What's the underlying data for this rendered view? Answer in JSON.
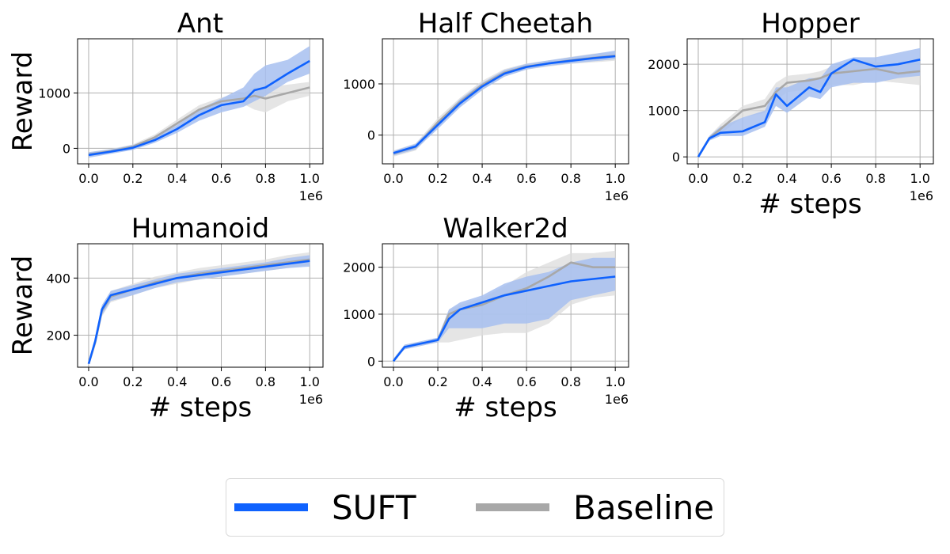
{
  "colors": {
    "suft": "#0f62fe",
    "suft_band": "#a7c0f0",
    "baseline": "#a8a8a8",
    "baseline_band": "#dcdcdc",
    "grid": "#b0b0b0"
  },
  "legend": {
    "items": [
      {
        "label": "SUFT",
        "color": "#0f62fe"
      },
      {
        "label": "Baseline",
        "color": "#a8a8a8"
      }
    ]
  },
  "chart_data": [
    {
      "type": "line",
      "title": "Ant",
      "ylabel": "Reward",
      "xlabel": "",
      "xlim": [
        -0.05,
        1.06
      ],
      "ylim": [
        -280,
        1980
      ],
      "yticks": [
        0,
        1000
      ],
      "xticks": [
        0.0,
        0.2,
        0.4,
        0.6,
        0.8,
        1.0
      ],
      "x_offset_label": "1e6",
      "grid": true,
      "x": [
        0.0,
        0.1,
        0.2,
        0.3,
        0.4,
        0.5,
        0.6,
        0.7,
        0.75,
        0.8,
        0.9,
        1.0
      ],
      "series": [
        {
          "name": "SUFT",
          "values": [
            -120,
            -60,
            10,
            150,
            350,
            600,
            780,
            850,
            1050,
            1100,
            1350,
            1580
          ],
          "band_low": [
            -170,
            -100,
            -30,
            100,
            280,
            500,
            650,
            750,
            850,
            950,
            1200,
            1350
          ],
          "band_high": [
            -70,
            -20,
            60,
            200,
            420,
            700,
            900,
            1100,
            1350,
            1500,
            1600,
            1850
          ]
        },
        {
          "name": "Baseline",
          "values": [
            -110,
            -50,
            30,
            200,
            450,
            700,
            850,
            900,
            950,
            900,
            1000,
            1100
          ],
          "band_low": [
            -150,
            -90,
            -10,
            150,
            380,
            620,
            780,
            800,
            700,
            650,
            850,
            950
          ],
          "band_high": [
            -70,
            -10,
            70,
            250,
            520,
            780,
            920,
            1000,
            1100,
            1100,
            1150,
            1200
          ]
        }
      ]
    },
    {
      "type": "line",
      "title": "Half Cheetah",
      "ylabel": "",
      "xlabel": "",
      "xlim": [
        -0.05,
        1.06
      ],
      "ylim": [
        -560,
        1880
      ],
      "yticks": [
        0,
        1000
      ],
      "xticks": [
        0.0,
        0.2,
        0.4,
        0.6,
        0.8,
        1.0
      ],
      "x_offset_label": "1e6",
      "grid": true,
      "x": [
        0.0,
        0.1,
        0.2,
        0.3,
        0.4,
        0.5,
        0.6,
        0.7,
        0.8,
        0.9,
        1.0
      ],
      "series": [
        {
          "name": "SUFT",
          "values": [
            -350,
            -220,
            200,
            620,
            950,
            1200,
            1330,
            1400,
            1450,
            1500,
            1540
          ],
          "band_low": [
            -400,
            -280,
            120,
            540,
            880,
            1140,
            1280,
            1350,
            1400,
            1440,
            1480
          ],
          "band_high": [
            -310,
            -170,
            270,
            700,
            1020,
            1270,
            1390,
            1460,
            1520,
            1580,
            1650
          ]
        },
        {
          "name": "Baseline",
          "values": [
            -360,
            -230,
            250,
            650,
            980,
            1220,
            1340,
            1400,
            1460,
            1510,
            1550
          ],
          "band_low": [
            -420,
            -300,
            150,
            560,
            880,
            1140,
            1280,
            1340,
            1390,
            1420,
            1450
          ],
          "band_high": [
            -300,
            -160,
            330,
            730,
            1060,
            1290,
            1400,
            1460,
            1530,
            1590,
            1620
          ]
        }
      ]
    },
    {
      "type": "line",
      "title": "Hopper",
      "ylabel": "",
      "xlabel": "# steps",
      "xlim": [
        -0.05,
        1.06
      ],
      "ylim": [
        -150,
        2550
      ],
      "yticks": [
        0,
        1000,
        2000
      ],
      "xticks": [
        0.0,
        0.2,
        0.4,
        0.6,
        0.8,
        1.0
      ],
      "x_offset_label": "1e6",
      "grid": true,
      "x": [
        0.0,
        0.05,
        0.1,
        0.2,
        0.3,
        0.35,
        0.4,
        0.5,
        0.55,
        0.6,
        0.7,
        0.8,
        0.9,
        1.0
      ],
      "series": [
        {
          "name": "SUFT",
          "values": [
            0,
            400,
            520,
            550,
            750,
            1350,
            1100,
            1500,
            1400,
            1800,
            2100,
            1950,
            2000,
            2100
          ],
          "band_low": [
            0,
            350,
            450,
            450,
            650,
            1100,
            950,
            1300,
            1250,
            1500,
            1600,
            1600,
            1700,
            1750
          ],
          "band_high": [
            50,
            450,
            650,
            850,
            1000,
            1500,
            1500,
            1700,
            1700,
            2000,
            2150,
            2150,
            2250,
            2350
          ]
        },
        {
          "name": "Baseline",
          "values": [
            0,
            400,
            600,
            1000,
            1100,
            1400,
            1600,
            1650,
            1700,
            1800,
            1850,
            1900,
            1800,
            1850
          ],
          "band_low": [
            0,
            350,
            500,
            850,
            950,
            1200,
            1400,
            1450,
            1500,
            1550,
            1550,
            1650,
            1600,
            1550
          ],
          "band_high": [
            50,
            450,
            700,
            1100,
            1250,
            1600,
            1750,
            1800,
            1850,
            1950,
            2050,
            2050,
            2000,
            2050
          ]
        }
      ]
    },
    {
      "type": "line",
      "title": "Humanoid",
      "ylabel": "Reward",
      "xlabel": "# steps",
      "xlim": [
        -0.05,
        1.06
      ],
      "ylim": [
        88,
        520
      ],
      "yticks": [
        200,
        400
      ],
      "xticks": [
        0.0,
        0.2,
        0.4,
        0.6,
        0.8,
        1.0
      ],
      "x_offset_label": "1e6",
      "grid": true,
      "x": [
        0.0,
        0.03,
        0.06,
        0.1,
        0.2,
        0.3,
        0.4,
        0.5,
        0.6,
        0.7,
        0.8,
        0.9,
        1.0
      ],
      "series": [
        {
          "name": "SUFT",
          "values": [
            100,
            180,
            290,
            340,
            360,
            380,
            400,
            410,
            420,
            430,
            440,
            450,
            460
          ],
          "band_low": [
            95,
            170,
            270,
            320,
            340,
            365,
            385,
            395,
            405,
            415,
            425,
            435,
            440
          ],
          "band_high": [
            105,
            190,
            305,
            355,
            375,
            395,
            415,
            425,
            435,
            445,
            455,
            470,
            480
          ]
        },
        {
          "name": "Baseline",
          "values": [
            100,
            175,
            285,
            335,
            360,
            385,
            400,
            415,
            425,
            435,
            445,
            455,
            465
          ],
          "band_low": [
            95,
            165,
            265,
            315,
            340,
            365,
            380,
            395,
            405,
            415,
            425,
            435,
            445
          ],
          "band_high": [
            105,
            185,
            305,
            355,
            380,
            405,
            420,
            435,
            445,
            455,
            465,
            480,
            490
          ]
        }
      ]
    },
    {
      "type": "line",
      "title": "Walker2d",
      "ylabel": "",
      "xlabel": "# steps",
      "xlim": [
        -0.05,
        1.06
      ],
      "ylim": [
        -130,
        2500
      ],
      "yticks": [
        0,
        1000,
        2000
      ],
      "xticks": [
        0.0,
        0.2,
        0.4,
        0.6,
        0.8,
        1.0
      ],
      "x_offset_label": "1e6",
      "grid": true,
      "x": [
        0.0,
        0.05,
        0.1,
        0.2,
        0.25,
        0.3,
        0.4,
        0.5,
        0.6,
        0.7,
        0.8,
        0.9,
        1.0
      ],
      "series": [
        {
          "name": "SUFT",
          "values": [
            0,
            300,
            350,
            450,
            900,
            1100,
            1250,
            1400,
            1500,
            1600,
            1700,
            1750,
            1800
          ],
          "band_low": [
            0,
            250,
            300,
            400,
            700,
            700,
            700,
            800,
            800,
            900,
            1300,
            1400,
            1500
          ],
          "band_high": [
            50,
            350,
            400,
            500,
            1100,
            1250,
            1400,
            1650,
            1800,
            1900,
            2100,
            2200,
            2200
          ]
        },
        {
          "name": "Baseline",
          "values": [
            0,
            300,
            350,
            450,
            1000,
            1100,
            1200,
            1400,
            1550,
            1800,
            2100,
            2000,
            2000
          ],
          "band_low": [
            0,
            250,
            300,
            400,
            400,
            450,
            550,
            600,
            600,
            800,
            1200,
            1350,
            1400
          ],
          "band_high": [
            50,
            350,
            400,
            500,
            1100,
            1200,
            1350,
            1600,
            1900,
            2100,
            2300,
            2300,
            2350
          ]
        }
      ]
    }
  ]
}
